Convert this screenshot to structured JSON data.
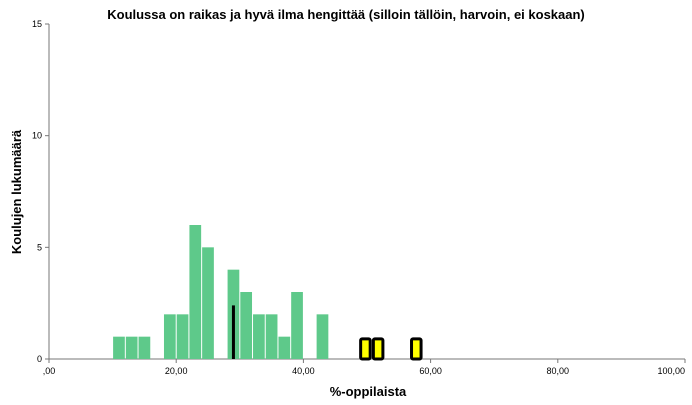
{
  "chart_data": {
    "type": "bar",
    "title": "Koulussa on raikas ja hyvä ilma hengittää (silloin tällöin, harvoin, ei koskaan)",
    "xlabel": "%-oppilaista",
    "ylabel": "Koulujen lukumäärä",
    "xlim": [
      0,
      100
    ],
    "ylim": [
      0,
      15
    ],
    "x_ticks": [
      0,
      20,
      40,
      60,
      80,
      100
    ],
    "x_tick_labels": [
      ",00",
      "20,00",
      "40,00",
      "60,00",
      "80,00",
      "100,00"
    ],
    "y_ticks": [
      0,
      5,
      10,
      15
    ],
    "y_tick_labels": [
      "0",
      "5",
      "10",
      "15"
    ],
    "grid": false,
    "bin_width": 2,
    "series": [
      {
        "color": "#5ec98a",
        "bins": [
          {
            "x_start": 10,
            "count": 1
          },
          {
            "x_start": 12,
            "count": 1
          },
          {
            "x_start": 14,
            "count": 1
          },
          {
            "x_start": 18,
            "count": 2
          },
          {
            "x_start": 20,
            "count": 2
          },
          {
            "x_start": 22,
            "count": 6
          },
          {
            "x_start": 24,
            "count": 5
          },
          {
            "x_start": 28,
            "count": 4
          },
          {
            "x_start": 30,
            "count": 3
          },
          {
            "x_start": 32,
            "count": 2
          },
          {
            "x_start": 34,
            "count": 2
          },
          {
            "x_start": 36,
            "count": 1
          },
          {
            "x_start": 38,
            "count": 3
          },
          {
            "x_start": 42,
            "count": 2
          }
        ]
      }
    ],
    "reference_line": {
      "x": 29,
      "y_top": 2.4,
      "color": "#000000"
    },
    "highlighted_bars": {
      "fill": "#ffff00",
      "stroke": "#000000",
      "items": [
        {
          "x_start": 49,
          "x_end": 50.5,
          "count": 0.9
        },
        {
          "x_start": 51,
          "x_end": 52.5,
          "count": 0.9
        },
        {
          "x_start": 57,
          "x_end": 58.5,
          "count": 0.9
        }
      ]
    }
  }
}
